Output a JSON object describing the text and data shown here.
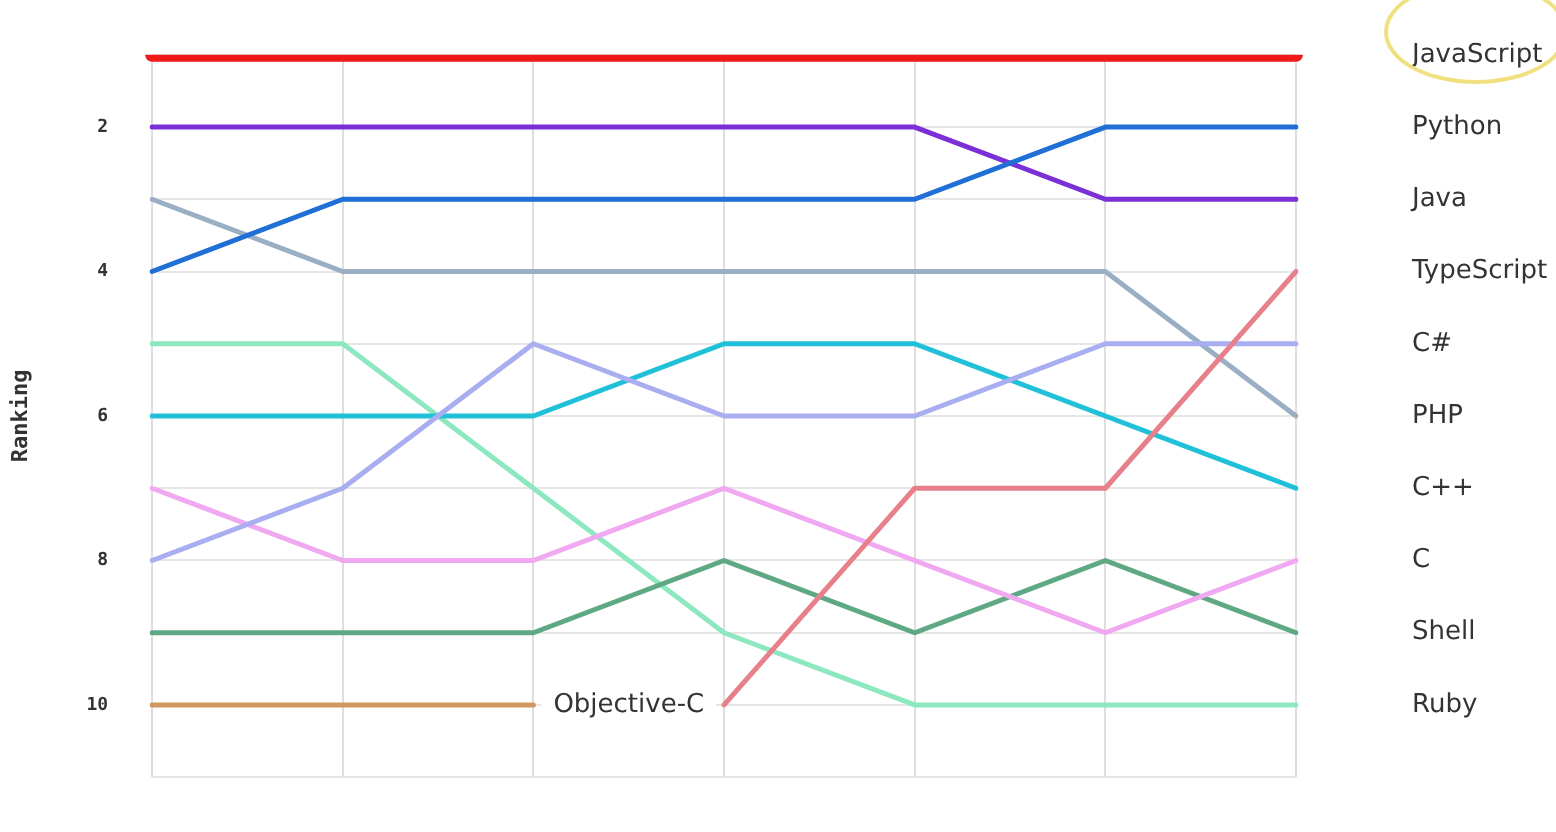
{
  "chart_data": {
    "type": "line",
    "ylabel": "Ranking",
    "categories": [
      null,
      null,
      null,
      null,
      null,
      null,
      null
    ],
    "ylim": [
      11,
      1
    ],
    "yticks": [
      {
        "value": 1,
        "label": null
      },
      2,
      {
        "value": 3,
        "label": null
      },
      4,
      {
        "value": 5,
        "label": null
      },
      6,
      {
        "value": 7,
        "label": null
      },
      8,
      {
        "value": 9,
        "label": null
      },
      10,
      {
        "value": 11,
        "label": null
      }
    ],
    "grid": true,
    "legend": false,
    "tick_labels": "y",
    "marker": "none",
    "line_style": "solid",
    "series": [
      {
        "name": "JavaScript",
        "color": "#f01818",
        "values": [
          1,
          1,
          1,
          1,
          1,
          1,
          1
        ]
      },
      {
        "name": "Python",
        "color": "#1f6fd6",
        "values": [
          4,
          3,
          3,
          3,
          3,
          2,
          2
        ]
      },
      {
        "name": "Java",
        "color": "#7b2fd6",
        "values": [
          2,
          2,
          2,
          2,
          2,
          3,
          3
        ]
      },
      {
        "name": "TypeScript",
        "color": "#e8808c",
        "values": [
          null,
          null,
          null,
          10,
          7,
          7,
          4
        ]
      },
      {
        "name": "C#",
        "color": "#a9aef0",
        "values": [
          8,
          7,
          5,
          6,
          6,
          5,
          5
        ]
      },
      {
        "name": "PHP",
        "color": "#9aaec4",
        "values": [
          3,
          4,
          4,
          4,
          4,
          4,
          6
        ]
      },
      {
        "name": "C++",
        "color": "#20c0d8",
        "values": [
          6,
          6,
          6,
          5,
          5,
          6,
          7
        ]
      },
      {
        "name": "C",
        "color": "#f0a8f0",
        "values": [
          7,
          8,
          8,
          7,
          8,
          9,
          8
        ]
      },
      {
        "name": "Shell",
        "color": "#5fa884",
        "values": [
          9,
          9,
          9,
          8,
          9,
          8,
          9
        ]
      },
      {
        "name": "Ruby",
        "color": "#8de8c0",
        "values": [
          5,
          5,
          7,
          9,
          10,
          10,
          10
        ]
      },
      {
        "name": "Objective-C",
        "color": "#d09860",
        "values": [
          10,
          10,
          10,
          null,
          null,
          null,
          null
        ]
      }
    ]
  }
}
